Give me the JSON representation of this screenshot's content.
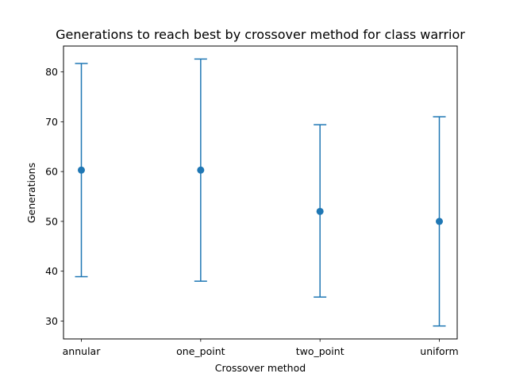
{
  "chart_data": {
    "type": "errorbar",
    "title": "Generations to reach best by crossover method for class warrior",
    "xlabel": "Crossover method",
    "ylabel": "Generations",
    "categories": [
      "annular",
      "one_point",
      "two_point",
      "uniform"
    ],
    "series": [
      {
        "values": [
          60.3,
          60.3,
          52.0,
          50.0
        ],
        "lower": [
          38.9,
          38.0,
          34.8,
          29.0
        ],
        "upper": [
          81.7,
          82.6,
          69.4,
          71.0
        ],
        "color": "#1f77b4"
      }
    ],
    "ylim": [
      26.4,
      85.2
    ],
    "yticks": [
      30,
      40,
      50,
      60,
      70,
      80
    ],
    "grid": false,
    "legend": "none"
  }
}
